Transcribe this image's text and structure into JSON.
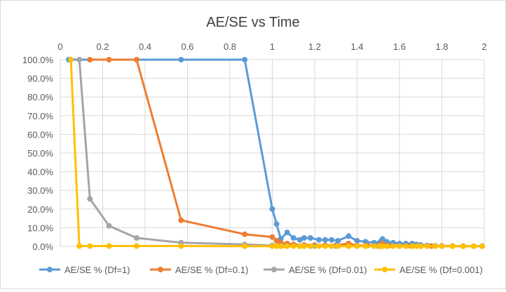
{
  "chart_data": {
    "type": "scatter",
    "title": "AE/SE vs Time",
    "xlabel": "",
    "ylabel": "",
    "xlim": [
      0,
      2
    ],
    "ylim": [
      0,
      100
    ],
    "x_ticks": [
      "0",
      "0.2",
      "0.4",
      "0.6",
      "0.8",
      "1",
      "1.2",
      "1.4",
      "1.6",
      "1.8",
      "2"
    ],
    "y_ticks": [
      "0.0%",
      "10.0%",
      "20.0%",
      "30.0%",
      "40.0%",
      "50.0%",
      "60.0%",
      "70.0%",
      "80.0%",
      "90.0%",
      "100.0%"
    ],
    "x_axis_position": "top",
    "grid": true,
    "legend_position": "bottom",
    "series": [
      {
        "name": "AE/SE % (Df=1)",
        "color": "#5b9bd5",
        "points": [
          [
            0.04,
            100
          ],
          [
            0.57,
            100
          ],
          [
            0.87,
            100
          ],
          [
            1.0,
            20
          ],
          [
            1.02,
            12
          ],
          [
            1.04,
            4
          ],
          [
            1.07,
            7.5
          ],
          [
            1.1,
            4.5
          ],
          [
            1.13,
            3.5
          ],
          [
            1.15,
            4.5
          ],
          [
            1.18,
            4.5
          ],
          [
            1.22,
            3.5
          ],
          [
            1.25,
            3.5
          ],
          [
            1.28,
            3.5
          ],
          [
            1.31,
            3
          ],
          [
            1.36,
            5.5
          ],
          [
            1.4,
            3
          ],
          [
            1.44,
            2.5
          ],
          [
            1.48,
            2
          ],
          [
            1.51,
            2.5
          ],
          [
            1.52,
            4
          ],
          [
            1.54,
            2.5
          ],
          [
            1.57,
            2
          ],
          [
            1.6,
            1.5
          ],
          [
            1.63,
            1.5
          ],
          [
            1.66,
            1.5
          ],
          [
            1.68,
            1
          ],
          [
            1.7,
            0.8
          ],
          [
            1.73,
            0.5
          ],
          [
            1.77,
            0.3
          ],
          [
            1.8,
            0.3
          ],
          [
            1.85,
            0.2
          ],
          [
            1.9,
            0.2
          ],
          [
            1.95,
            0.1
          ],
          [
            1.99,
            0.1
          ]
        ]
      },
      {
        "name": "AE/SE % (Df=0.1)",
        "color": "#ed7d31",
        "points": [
          [
            0.14,
            100
          ],
          [
            0.23,
            100
          ],
          [
            0.36,
            100
          ],
          [
            0.57,
            14
          ],
          [
            0.87,
            6.5
          ],
          [
            1.0,
            5
          ],
          [
            1.02,
            3
          ],
          [
            1.04,
            2
          ],
          [
            1.07,
            1.5
          ],
          [
            1.1,
            1
          ],
          [
            1.15,
            0.8
          ],
          [
            1.2,
            0.7
          ],
          [
            1.25,
            0.6
          ],
          [
            1.3,
            0.6
          ],
          [
            1.36,
            1.5
          ],
          [
            1.4,
            0.5
          ],
          [
            1.45,
            0.5
          ],
          [
            1.5,
            0.5
          ],
          [
            1.52,
            1.5
          ],
          [
            1.55,
            0.4
          ],
          [
            1.6,
            0.3
          ],
          [
            1.65,
            0.3
          ],
          [
            1.7,
            0.2
          ],
          [
            1.75,
            0.2
          ],
          [
            1.8,
            0.2
          ],
          [
            1.85,
            0.1
          ],
          [
            1.9,
            0.1
          ],
          [
            1.95,
            0.1
          ],
          [
            1.99,
            0.1
          ]
        ]
      },
      {
        "name": "AE/SE % (Df=0.01)",
        "color": "#a5a5a5",
        "points": [
          [
            0.09,
            100
          ],
          [
            0.14,
            25.5
          ],
          [
            0.23,
            11
          ],
          [
            0.36,
            4.5
          ],
          [
            0.57,
            2
          ],
          [
            0.87,
            1
          ],
          [
            1.0,
            0.5
          ],
          [
            1.05,
            0.4
          ],
          [
            1.1,
            0.3
          ],
          [
            1.15,
            0.3
          ],
          [
            1.2,
            0.2
          ],
          [
            1.3,
            0.2
          ],
          [
            1.4,
            0.2
          ],
          [
            1.5,
            0.1
          ],
          [
            1.6,
            0.1
          ],
          [
            1.7,
            0.1
          ],
          [
            1.8,
            0.1
          ],
          [
            1.9,
            0.1
          ],
          [
            1.99,
            0.1
          ]
        ]
      },
      {
        "name": "AE/SE % (Df=0.001)",
        "color": "#ffc000",
        "points": [
          [
            0.05,
            100
          ],
          [
            0.09,
            0.2
          ],
          [
            0.14,
            0.2
          ],
          [
            0.23,
            0.2
          ],
          [
            0.36,
            0.2
          ],
          [
            0.57,
            0.2
          ],
          [
            0.87,
            0.1
          ],
          [
            1.0,
            0.1
          ],
          [
            1.02,
            0.1
          ],
          [
            1.04,
            0.1
          ],
          [
            1.07,
            0.1
          ],
          [
            1.1,
            0.1
          ],
          [
            1.13,
            0.1
          ],
          [
            1.15,
            0.1
          ],
          [
            1.18,
            0.1
          ],
          [
            1.22,
            0.1
          ],
          [
            1.25,
            0.1
          ],
          [
            1.28,
            0.1
          ],
          [
            1.31,
            0.1
          ],
          [
            1.36,
            0.1
          ],
          [
            1.4,
            0.1
          ],
          [
            1.44,
            0.1
          ],
          [
            1.48,
            0.1
          ],
          [
            1.51,
            0.1
          ],
          [
            1.52,
            0.1
          ],
          [
            1.54,
            0.1
          ],
          [
            1.57,
            0.1
          ],
          [
            1.6,
            0.1
          ],
          [
            1.63,
            0.1
          ],
          [
            1.66,
            0.1
          ],
          [
            1.68,
            0.1
          ],
          [
            1.7,
            0.1
          ],
          [
            1.73,
            0.1
          ],
          [
            1.77,
            0.1
          ],
          [
            1.8,
            0.1
          ],
          [
            1.85,
            0.1
          ],
          [
            1.9,
            0.1
          ],
          [
            1.95,
            0.1
          ],
          [
            1.99,
            0.1
          ]
        ]
      }
    ]
  }
}
